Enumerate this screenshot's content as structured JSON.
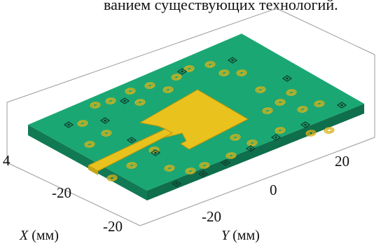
{
  "caption_fragment": "ванием существующих технологий.",
  "axes": {
    "x_label_var": "X",
    "x_label_unit": " (мм)",
    "y_label_var": "Y",
    "y_label_unit": " (мм)",
    "x_ticks": [
      "-20",
      "-20"
    ],
    "y_ticks": [
      "20",
      "0",
      "-20"
    ],
    "z_ticks": [
      "4"
    ]
  },
  "colors": {
    "substrate_top": "#1aa774",
    "substrate_edge": "#117a55",
    "metal": "#e9c21e",
    "metal_edge": "#b8950e",
    "box": "#9a9a9a",
    "via": "#0f3d2b"
  }
}
